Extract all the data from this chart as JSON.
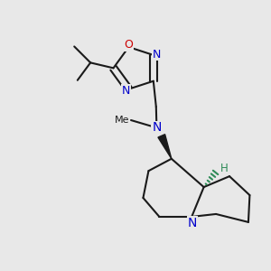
{
  "bg_color": "#e8e8e8",
  "bond_color": "#1a1a1a",
  "n_color": "#0000cc",
  "o_color": "#cc0000",
  "h_color": "#2e8b57",
  "bond_lw": 1.5,
  "fig_size": [
    3.0,
    3.0
  ],
  "dpi": 100,
  "xlim": [
    0.0,
    1.0
  ],
  "ylim": [
    0.05,
    1.05
  ]
}
